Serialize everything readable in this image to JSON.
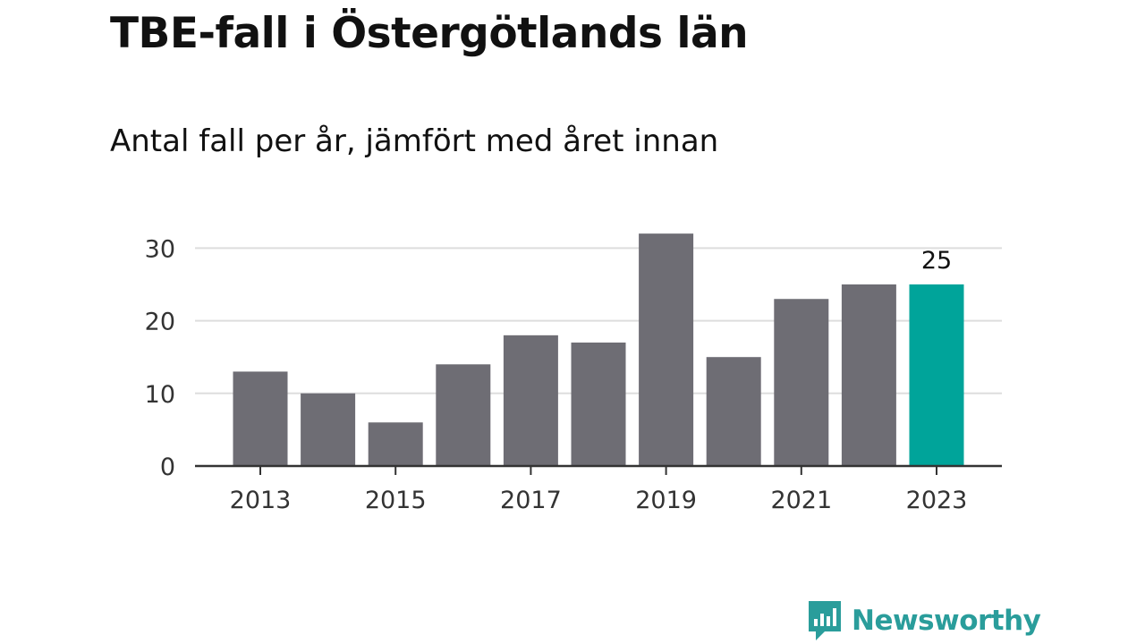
{
  "chart_data": {
    "type": "bar",
    "title": "TBE-fall i Östergötlands län",
    "subtitle": "Antal fall per år, jämfört med året innan",
    "xlabel": "",
    "ylabel": "",
    "categories": [
      "2013",
      "2014",
      "2015",
      "2016",
      "2017",
      "2018",
      "2019",
      "2020",
      "2021",
      "2022",
      "2023"
    ],
    "x_tick_labels": [
      "2013",
      "2015",
      "2017",
      "2019",
      "2021",
      "2023"
    ],
    "values": [
      13,
      10,
      6,
      14,
      18,
      17,
      32,
      15,
      23,
      25,
      25
    ],
    "ylim": [
      0,
      35
    ],
    "y_ticks": [
      0,
      10,
      20,
      30
    ],
    "grid": true,
    "highlight": {
      "category": "2023",
      "label": "25"
    },
    "colors": {
      "bar": "#6e6d74",
      "highlight": "#00a49a",
      "grid": "#dddddd",
      "axis": "#333333"
    }
  },
  "branding": {
    "name": "Newsworthy",
    "color": "#2a9d9b"
  }
}
